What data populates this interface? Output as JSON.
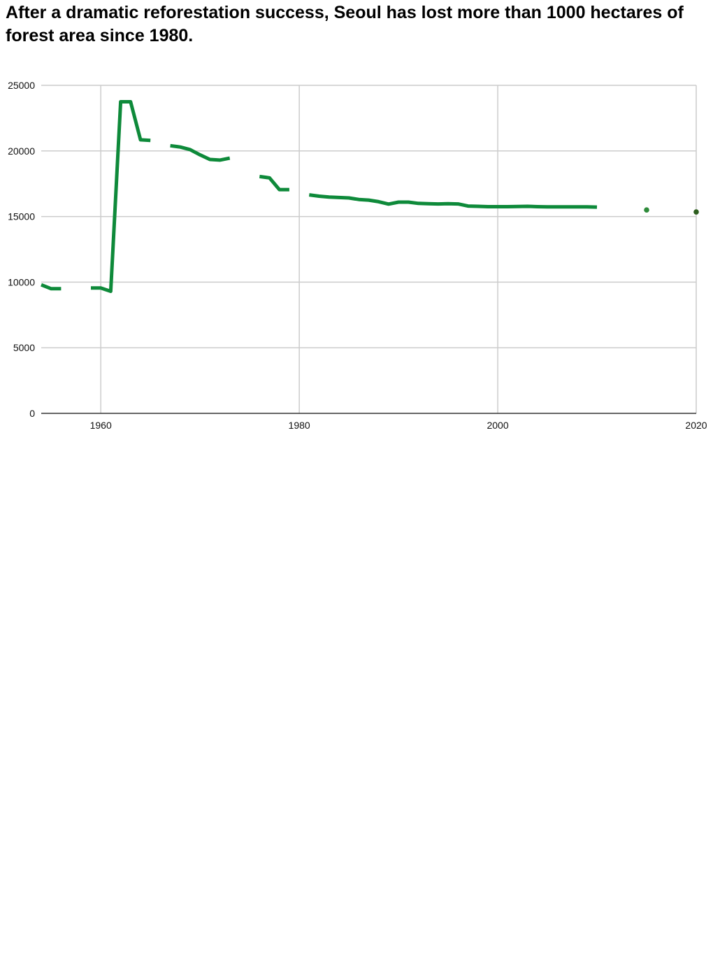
{
  "page": {
    "title": "After a dramatic reforestation success, Seoul has lost more than 1000 hectares of forest area since 1980."
  },
  "chart_data": {
    "type": "line",
    "title": "After a dramatic reforestation success, Seoul has lost more than 1000 hectares of forest area since 1980.",
    "xlabel": "",
    "ylabel": "",
    "xlim": [
      1954,
      2020
    ],
    "ylim": [
      0,
      25000
    ],
    "x_ticks": [
      "1960",
      "1980",
      "2000",
      "2020"
    ],
    "y_ticks": [
      "0",
      "5000",
      "10000",
      "15000",
      "20000",
      "25000"
    ],
    "grid": true,
    "legend": "none",
    "line_color": "#0e8a3a",
    "segments": [
      {
        "x": [
          1954,
          1955,
          1956
        ],
        "y": [
          9800,
          9500,
          9500
        ]
      },
      {
        "x": [
          1959,
          1960,
          1961,
          1962,
          1963,
          1964,
          1965
        ],
        "y": [
          9550,
          9550,
          9300,
          23750,
          23750,
          20850,
          20800
        ]
      },
      {
        "x": [
          1967,
          1968,
          1969,
          1970,
          1971,
          1972,
          1973
        ],
        "y": [
          20400,
          20300,
          20100,
          19700,
          19350,
          19300,
          19450
        ]
      },
      {
        "x": [
          1976,
          1977,
          1978,
          1979
        ],
        "y": [
          18050,
          17950,
          17050,
          17050
        ]
      },
      {
        "x": [
          1981,
          1982,
          1983,
          1984,
          1985,
          1986,
          1987,
          1988,
          1989,
          1990,
          1991,
          1992,
          1993,
          1994,
          1995,
          1996,
          1997,
          1998,
          1999,
          2000,
          2001,
          2002,
          2003,
          2004,
          2005,
          2006,
          2007,
          2008,
          2009,
          2010
        ],
        "y": [
          16650,
          16550,
          16480,
          16450,
          16420,
          16300,
          16250,
          16130,
          15950,
          16100,
          16100,
          16000,
          15980,
          15960,
          15980,
          15960,
          15800,
          15780,
          15750,
          15750,
          15750,
          15770,
          15780,
          15750,
          15740,
          15740,
          15740,
          15740,
          15740,
          15720
        ]
      }
    ],
    "points": [
      {
        "x": 2015,
        "y": 15500,
        "color": "#2e8b3a"
      },
      {
        "x": 2020,
        "y": 15350,
        "color": "#2d5e1e"
      }
    ]
  }
}
